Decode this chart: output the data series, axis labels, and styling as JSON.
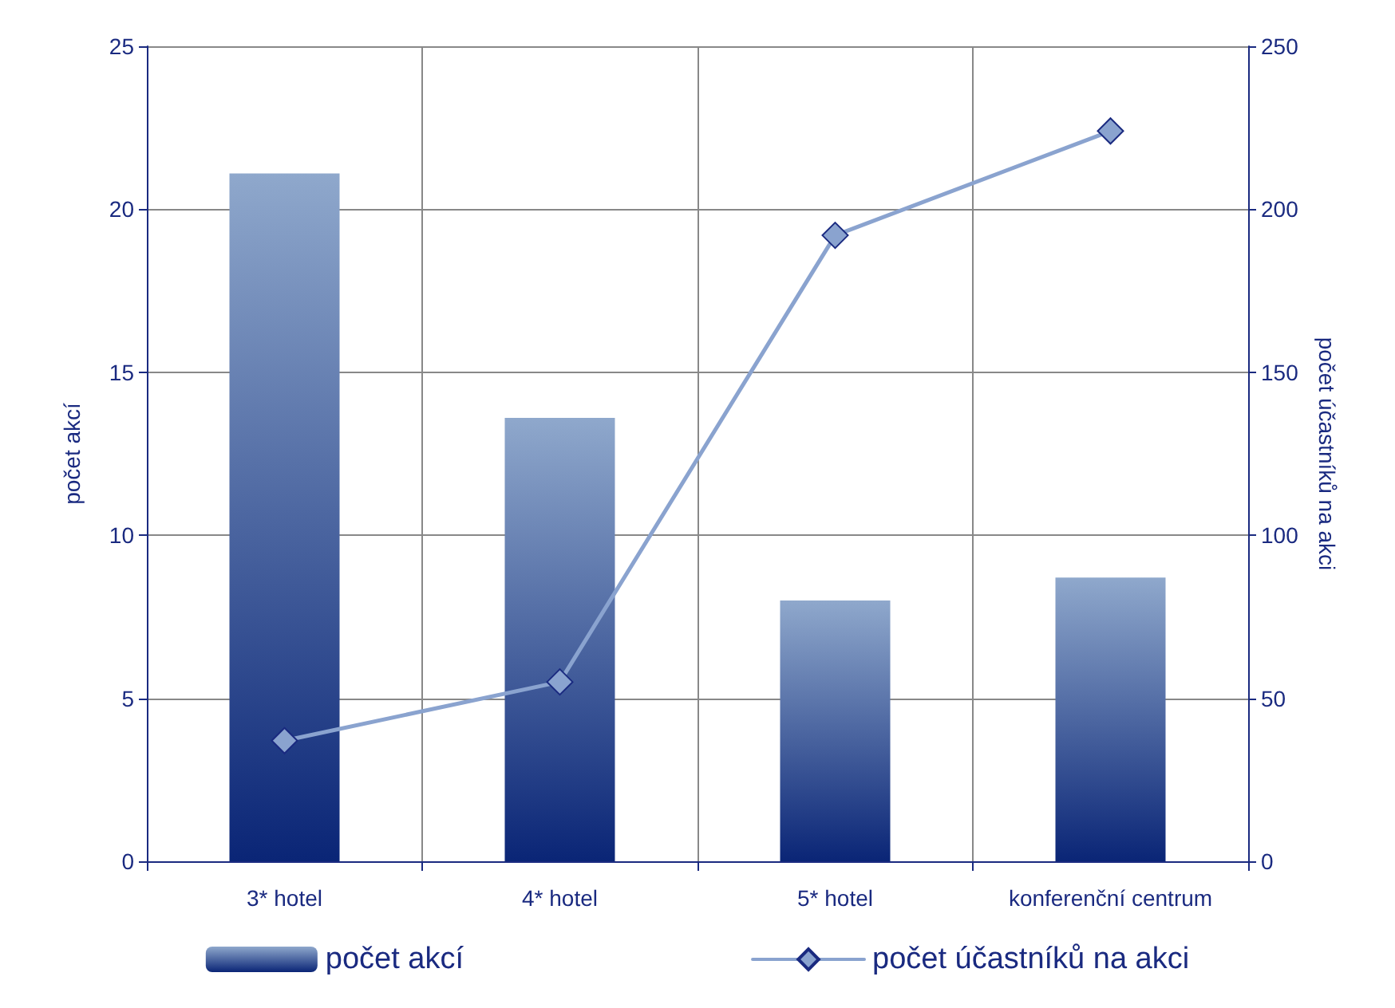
{
  "chart_data": {
    "type": "bar",
    "categories": [
      "3* hotel",
      "4* hotel",
      "5* hotel",
      "konferenční centrum"
    ],
    "series": [
      {
        "name": "počet akcí",
        "color": "#8fa8cc",
        "values": [
          21.1,
          13.6,
          8.0,
          8.7
        ]
      },
      {
        "name": "počet účastníků na akci",
        "type": "line",
        "axis": "y2",
        "color": "#8aa3cf",
        "values": [
          37,
          55,
          192,
          224
        ]
      }
    ],
    "ylabel": "počet akcí",
    "y2label": "počet účastníků na akci",
    "ylim": [
      0,
      25
    ],
    "yticks": [
      0,
      5,
      10,
      15,
      20,
      25
    ],
    "y2lim": [
      0,
      250
    ],
    "y2ticks": [
      0,
      50,
      100,
      150,
      200,
      250
    ],
    "grid": true,
    "legend": "bottom",
    "marker": "diamond",
    "line_style": "solid"
  }
}
